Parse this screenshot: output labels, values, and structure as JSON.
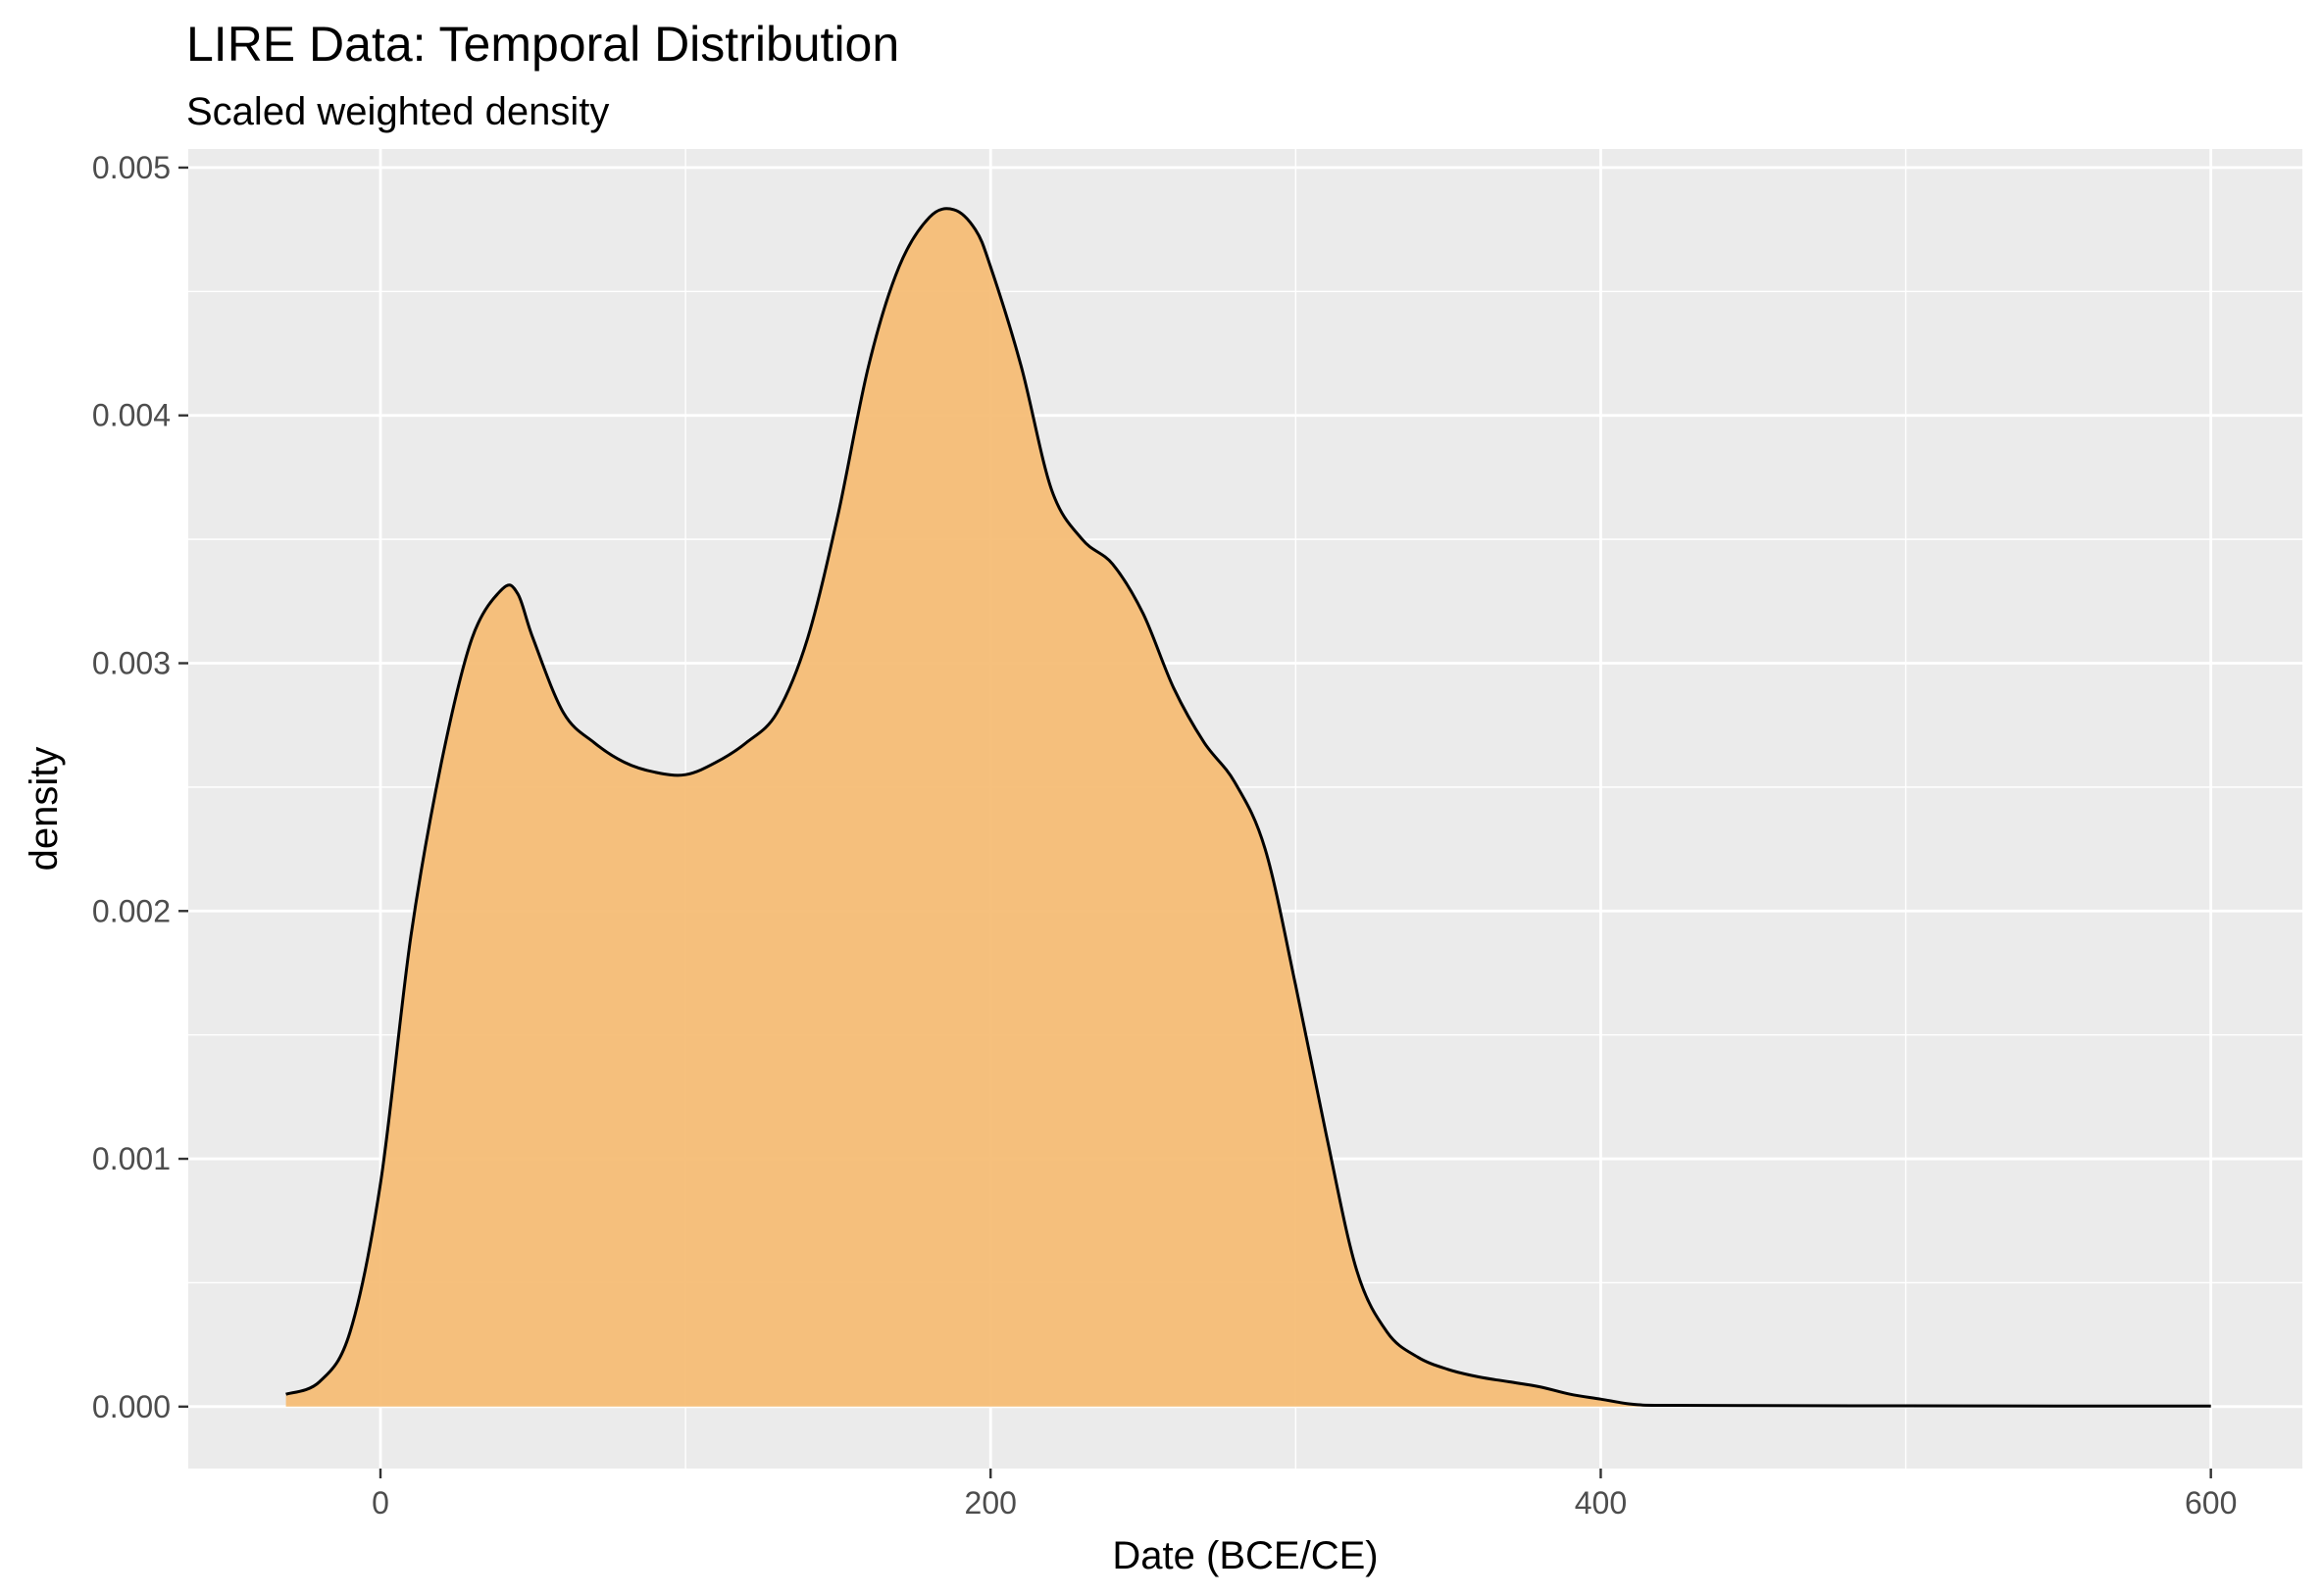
{
  "chart_data": {
    "type": "area",
    "title": "LIRE Data: Temporal Distribution",
    "subtitle": "Scaled weighted density",
    "xlabel": "Date (BCE/CE)",
    "ylabel": "density",
    "xlim": [
      -63,
      630
    ],
    "ylim": [
      -0.00025,
      0.005075
    ],
    "x_ticks": [
      0,
      200,
      400,
      600
    ],
    "x_tick_labels": [
      "0",
      "200",
      "400",
      "600"
    ],
    "y_ticks": [
      0.0,
      0.001,
      0.002,
      0.003,
      0.004,
      0.005
    ],
    "y_tick_labels": [
      "0.000",
      "0.001",
      "0.002",
      "0.003",
      "0.004",
      "0.005"
    ],
    "grid": true,
    "colors": {
      "panel": "#ebebeb",
      "grid": "#ffffff",
      "fill": "#f5bb72",
      "line": "#000000"
    },
    "x": [
      -31,
      -20,
      -10,
      0,
      10,
      20,
      30,
      40,
      45,
      50,
      60,
      70,
      80,
      90,
      100,
      110,
      120,
      130,
      140,
      150,
      160,
      170,
      180,
      188,
      195,
      200,
      210,
      220,
      230,
      240,
      250,
      260,
      270,
      280,
      290,
      300,
      310,
      320,
      330,
      340,
      350,
      360,
      370,
      380,
      390,
      400,
      410,
      420,
      450,
      500,
      550,
      600
    ],
    "y": [
      5e-05,
      0.0001,
      0.0003,
      0.0009,
      0.0019,
      0.0026,
      0.0031,
      0.0033,
      0.00328,
      0.0031,
      0.0028,
      0.00268,
      0.0026,
      0.00256,
      0.00255,
      0.0026,
      0.00268,
      0.0028,
      0.0031,
      0.0036,
      0.0042,
      0.0046,
      0.0048,
      0.00483,
      0.00475,
      0.0046,
      0.0042,
      0.0037,
      0.0035,
      0.0034,
      0.0032,
      0.0029,
      0.00268,
      0.00252,
      0.00225,
      0.0017,
      0.0011,
      0.00055,
      0.0003,
      0.0002,
      0.00015,
      0.00012,
      0.0001,
      8e-05,
      5e-05,
      3e-05,
      1e-05,
      5e-06,
      4e-06,
      3e-06,
      2.5e-06,
      2e-06
    ]
  }
}
